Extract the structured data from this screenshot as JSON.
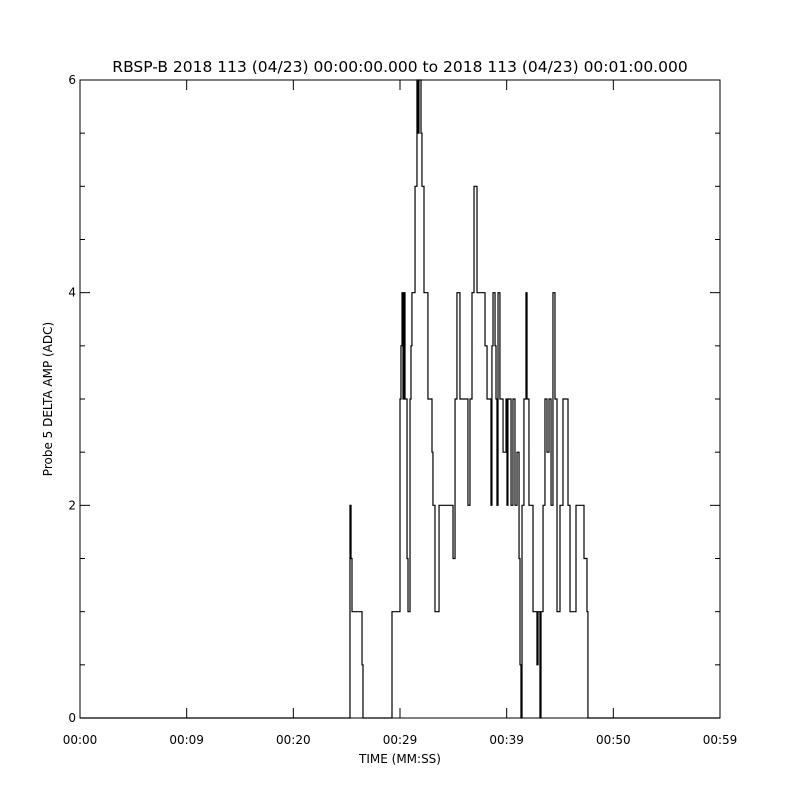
{
  "chart_data": {
    "type": "line",
    "title": "RBSP-B 2018 113 (04/23) 00:00:00.000 to 2018 113 (04/23) 00:01:00.000",
    "xlabel": "TIME (MM:SS)",
    "ylabel": "Probe 5 DELTA AMP (ADC)",
    "xlim": [
      0,
      60
    ],
    "ylim": [
      0,
      6
    ],
    "x_tick_labels": [
      "00:00",
      "00:09",
      "00:20",
      "00:29",
      "00:39",
      "00:50",
      "00:59"
    ],
    "y_tick_labels": [
      "0",
      "2",
      "4",
      "6"
    ],
    "y_ticks": [
      0,
      2,
      4,
      6
    ],
    "grid": false,
    "line_color": "#000000",
    "step": true,
    "series": [
      {
        "x": [
          0,
          25.31,
          25.41,
          25.5,
          26.44,
          26.53,
          29.25,
          30.0,
          30.09,
          30.19,
          30.28,
          30.37,
          30.47,
          30.66,
          30.75,
          30.94,
          31.03,
          31.12,
          31.41,
          31.59,
          31.69,
          31.78,
          31.97,
          32.06,
          32.25,
          32.62,
          33.0,
          33.09,
          33.28,
          33.66,
          34.97,
          35.16,
          35.34,
          35.62,
          36.37,
          36.56,
          36.75,
          36.94,
          37.22,
          37.97,
          38.16,
          38.53,
          38.62,
          38.72,
          38.91,
          39.0,
          39.09,
          39.19,
          39.37,
          39.66,
          39.94,
          40.03,
          40.12,
          40.41,
          40.59,
          40.78,
          40.97,
          41.16,
          41.25,
          41.34,
          41.44,
          41.62,
          41.81,
          41.91,
          42.09,
          42.47,
          42.84,
          42.94,
          43.12,
          43.22,
          43.41,
          43.59,
          43.78,
          43.97,
          44.16,
          44.34,
          44.53,
          44.72,
          45.0,
          45.28,
          45.75,
          45.94,
          46.5,
          47.25,
          47.53,
          47.62,
          60
        ],
        "y": [
          0,
          2,
          1.5,
          1,
          0.5,
          0,
          1,
          3,
          3.5,
          4,
          3,
          4,
          3,
          1.5,
          1,
          3,
          3.5,
          4,
          5,
          6,
          5.5,
          6,
          5.5,
          5,
          4,
          3,
          2.5,
          2,
          1,
          2,
          1.5,
          3,
          4,
          3,
          2,
          3,
          4,
          5,
          4,
          3.5,
          3,
          2,
          3.5,
          4,
          3.5,
          3,
          2,
          4,
          3,
          2.5,
          3,
          2,
          3,
          2,
          3,
          2,
          2.5,
          1.5,
          0.5,
          0,
          2,
          3,
          4,
          3,
          2,
          1,
          0.5,
          1,
          0,
          1,
          2,
          3,
          2.5,
          3,
          2,
          4,
          3,
          1,
          2,
          3,
          2,
          1,
          2,
          1.5,
          1,
          0,
          0
        ]
      }
    ]
  }
}
